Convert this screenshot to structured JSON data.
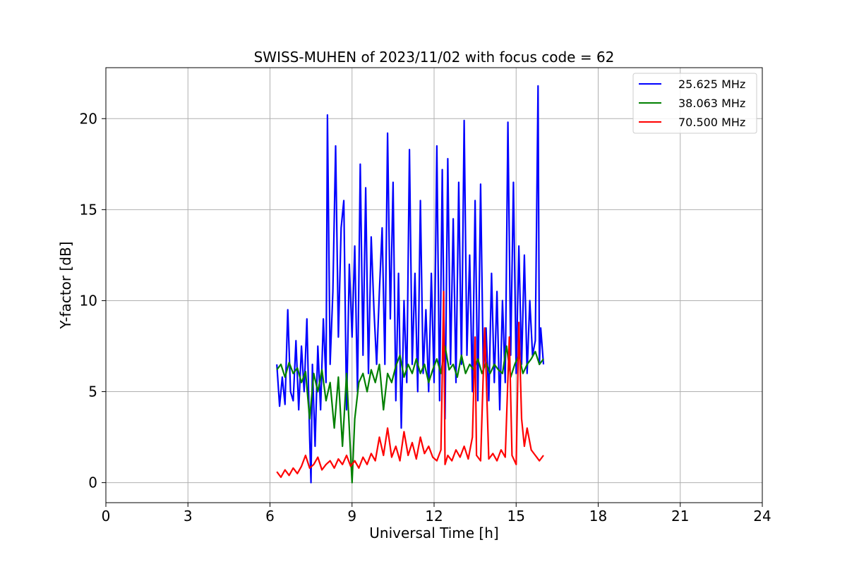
{
  "chart_data": {
    "type": "line",
    "title": "SWISS-MUHEN of 2023/11/02 with focus code = 62",
    "xlabel": "Universal Time [h]",
    "ylabel": "Y-factor [dB]",
    "xlim": [
      0,
      24
    ],
    "ylim": [
      -1.1,
      22.8
    ],
    "xticks": [
      0,
      3,
      6,
      9,
      12,
      15,
      18,
      21,
      24
    ],
    "yticks": [
      0,
      5,
      10,
      15,
      20
    ],
    "grid": true,
    "legend": "top-right",
    "series": [
      {
        "name": "25.625 MHz",
        "color": "#0000ff",
        "x": [
          6.25,
          6.35,
          6.45,
          6.55,
          6.65,
          6.75,
          6.85,
          6.95,
          7.05,
          7.15,
          7.25,
          7.35,
          7.45,
          7.5,
          7.55,
          7.65,
          7.75,
          7.85,
          7.95,
          8.05,
          8.1,
          8.2,
          8.3,
          8.4,
          8.5,
          8.6,
          8.7,
          8.8,
          8.9,
          9.0,
          9.1,
          9.2,
          9.3,
          9.4,
          9.5,
          9.6,
          9.7,
          9.8,
          9.9,
          10.0,
          10.1,
          10.2,
          10.3,
          10.4,
          10.5,
          10.6,
          10.7,
          10.8,
          10.9,
          11.0,
          11.1,
          11.2,
          11.3,
          11.4,
          11.5,
          11.6,
          11.7,
          11.8,
          11.9,
          12.0,
          12.1,
          12.2,
          12.3,
          12.4,
          12.5,
          12.6,
          12.7,
          12.8,
          12.9,
          13.0,
          13.1,
          13.2,
          13.3,
          13.4,
          13.5,
          13.6,
          13.7,
          13.8,
          13.9,
          14.0,
          14.1,
          14.2,
          14.3,
          14.4,
          14.5,
          14.6,
          14.7,
          14.8,
          14.9,
          15.0,
          15.1,
          15.2,
          15.3,
          15.4,
          15.5,
          15.6,
          15.7,
          15.8,
          15.85,
          15.9,
          16.0
        ],
        "y": [
          6.5,
          4.2,
          5.8,
          4.3,
          9.5,
          5.0,
          4.5,
          7.8,
          4.0,
          7.5,
          5.0,
          9.0,
          2.5,
          0.0,
          6.5,
          2.0,
          7.5,
          4.0,
          9.0,
          5.5,
          20.2,
          6.5,
          10.5,
          18.5,
          8.0,
          14.0,
          15.5,
          4.0,
          12.0,
          8.0,
          13.0,
          5.0,
          17.5,
          7.0,
          16.2,
          6.0,
          13.5,
          9.5,
          6.5,
          10.5,
          14.0,
          6.5,
          19.2,
          9.0,
          16.5,
          4.5,
          11.5,
          3.0,
          10.0,
          5.5,
          18.3,
          6.5,
          11.5,
          5.0,
          15.5,
          6.0,
          9.5,
          5.0,
          11.5,
          5.5,
          18.5,
          4.5,
          17.2,
          3.5,
          17.8,
          6.5,
          14.5,
          5.5,
          16.5,
          6.5,
          19.9,
          7.0,
          12.5,
          5.0,
          15.5,
          4.5,
          16.4,
          6.0,
          8.5,
          4.5,
          11.5,
          5.5,
          10.5,
          4.0,
          10.0,
          5.5,
          19.8,
          7.0,
          16.5,
          6.0,
          13.0,
          6.5,
          12.5,
          6.0,
          10.0,
          7.0,
          7.8,
          21.8,
          6.5,
          8.5,
          6.5
        ]
      },
      {
        "name": "38.063 MHz",
        "color": "#008000",
        "x": [
          6.25,
          6.4,
          6.55,
          6.7,
          6.85,
          7.0,
          7.15,
          7.3,
          7.45,
          7.6,
          7.75,
          7.9,
          8.05,
          8.2,
          8.35,
          8.5,
          8.65,
          8.8,
          8.95,
          9.0,
          9.1,
          9.25,
          9.4,
          9.55,
          9.7,
          9.85,
          10.0,
          10.15,
          10.3,
          10.45,
          10.6,
          10.75,
          10.9,
          11.05,
          11.2,
          11.35,
          11.5,
          11.65,
          11.8,
          11.95,
          12.1,
          12.25,
          12.4,
          12.55,
          12.7,
          12.85,
          13.0,
          13.15,
          13.3,
          13.45,
          13.6,
          13.75,
          13.9,
          14.05,
          14.2,
          14.35,
          14.5,
          14.65,
          14.8,
          14.95,
          15.1,
          15.25,
          15.4,
          15.55,
          15.7,
          15.85,
          16.0
        ],
        "y": [
          6.2,
          6.5,
          5.8,
          6.6,
          6.0,
          6.3,
          5.5,
          6.1,
          3.5,
          6.0,
          5.0,
          6.2,
          4.5,
          5.5,
          3.0,
          5.8,
          2.0,
          6.0,
          1.5,
          0.0,
          3.5,
          5.5,
          6.0,
          5.0,
          6.2,
          5.5,
          6.5,
          4.0,
          6.0,
          5.5,
          6.4,
          7.0,
          5.8,
          6.5,
          6.0,
          6.8,
          6.0,
          6.5,
          5.5,
          6.2,
          6.8,
          6.0,
          7.5,
          6.2,
          6.5,
          5.8,
          7.0,
          6.0,
          6.5,
          6.2,
          6.8,
          6.0,
          6.6,
          6.0,
          6.5,
          6.2,
          6.0,
          7.5,
          5.8,
          6.5,
          7.0,
          6.0,
          6.5,
          6.8,
          7.2,
          6.5,
          6.8
        ]
      },
      {
        "name": "70.500 MHz",
        "color": "#ff0000",
        "x": [
          6.25,
          6.4,
          6.55,
          6.7,
          6.85,
          7.0,
          7.15,
          7.3,
          7.45,
          7.6,
          7.75,
          7.9,
          8.05,
          8.2,
          8.35,
          8.5,
          8.65,
          8.8,
          8.95,
          9.1,
          9.25,
          9.4,
          9.55,
          9.7,
          9.85,
          10.0,
          10.15,
          10.3,
          10.45,
          10.6,
          10.75,
          10.9,
          11.05,
          11.2,
          11.35,
          11.5,
          11.65,
          11.8,
          11.95,
          12.1,
          12.25,
          12.35,
          12.4,
          12.5,
          12.65,
          12.8,
          12.95,
          13.1,
          13.25,
          13.4,
          13.5,
          13.55,
          13.7,
          13.85,
          14.0,
          14.15,
          14.3,
          14.45,
          14.6,
          14.75,
          14.85,
          15.0,
          15.1,
          15.2,
          15.3,
          15.4,
          15.55,
          15.7,
          15.85,
          16.0
        ],
        "y": [
          0.6,
          0.3,
          0.7,
          0.4,
          0.8,
          0.5,
          0.9,
          1.5,
          0.8,
          1.0,
          1.4,
          0.7,
          1.0,
          1.2,
          0.8,
          1.3,
          1.0,
          1.5,
          0.9,
          1.2,
          0.8,
          1.4,
          1.0,
          1.6,
          1.2,
          2.5,
          1.5,
          3.0,
          1.4,
          2.0,
          1.2,
          2.8,
          1.5,
          2.2,
          1.3,
          2.5,
          1.6,
          2.0,
          1.4,
          1.2,
          1.8,
          10.5,
          1.0,
          1.5,
          1.2,
          1.8,
          1.4,
          2.0,
          1.3,
          2.5,
          8.0,
          1.5,
          1.2,
          8.5,
          1.3,
          1.6,
          1.2,
          1.8,
          1.4,
          8.0,
          1.5,
          1.0,
          8.8,
          3.5,
          2.0,
          3.0,
          1.8,
          1.5,
          1.2,
          1.5
        ]
      }
    ]
  }
}
